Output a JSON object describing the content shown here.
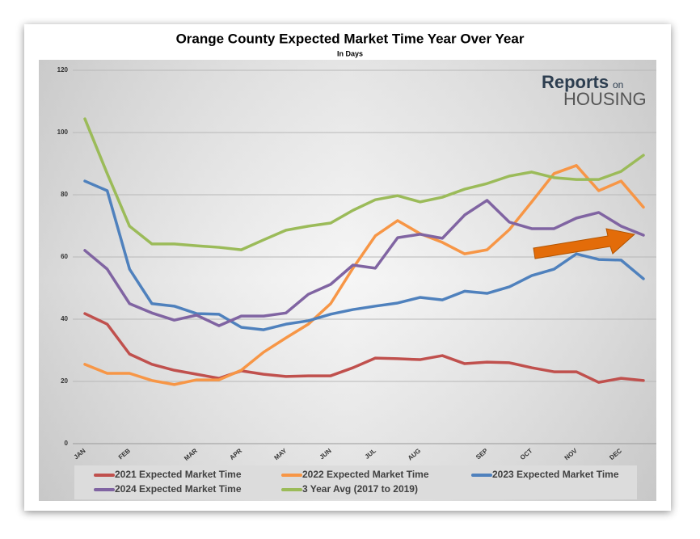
{
  "chart_data": {
    "type": "line",
    "title": "Orange County Expected Market Time Year Over Year",
    "subtitle": "In Days",
    "logo": {
      "top": "Reports",
      "small": "on",
      "bottom": "HOUSING"
    },
    "categories": [
      "JAN",
      null,
      "FEB",
      null,
      null,
      "MAR",
      null,
      "APR",
      null,
      "MAY",
      null,
      "JUN",
      null,
      "JUL",
      null,
      "AUG",
      null,
      null,
      "SEP",
      null,
      "OCT",
      null,
      "NOV",
      null,
      "DEC",
      null
    ],
    "series": [
      {
        "name": "2021 Expected Market Time",
        "color": "#c0504d",
        "values": [
          41.8,
          38.4,
          28.8,
          25.5,
          23.6,
          22.3,
          21,
          23.4,
          22.3,
          21.6,
          21.8,
          21.8,
          24.4,
          27.5,
          27.3,
          27,
          28.3,
          25.7,
          26.2,
          26,
          24.4,
          23.1,
          23.1,
          19.7,
          21,
          20.3
        ]
      },
      {
        "name": "2022 Expected Market Time",
        "color": "#f79646",
        "values": [
          25.5,
          22.6,
          22.6,
          20.3,
          19,
          20.5,
          20.5,
          23.6,
          29.4,
          34,
          38.4,
          45,
          56.4,
          66.8,
          71.7,
          67.5,
          64.7,
          61,
          62.3,
          68.8,
          77.7,
          86.8,
          89.4,
          81.3,
          84.4,
          76
        ]
      },
      {
        "name": "2023 Expected Market Time",
        "color": "#4f81bd",
        "values": [
          84.4,
          81.3,
          56.1,
          45,
          44.2,
          41.8,
          41.6,
          37.4,
          36.6,
          38.4,
          39.5,
          41.6,
          43.1,
          44.2,
          45.2,
          47,
          46.2,
          49,
          48.3,
          50.4,
          54,
          56.1,
          61,
          59.2,
          59,
          53
        ]
      },
      {
        "name": "2024 Expected Market Time",
        "color": "#8064a2",
        "values": [
          62.1,
          56.1,
          45,
          42,
          39.7,
          41.3,
          37.9,
          41,
          41,
          42,
          48,
          51.2,
          57.4,
          56.4,
          66.2,
          67.3,
          66,
          73.5,
          78.2,
          71.2,
          69.1,
          69.1,
          72.5,
          74.3,
          69.9,
          67
        ]
      },
      {
        "name": "3 Year Avg (2017 to 2019)",
        "color": "#9bbb59",
        "values": [
          104.4,
          86.8,
          69.9,
          64.2,
          64.2,
          63.6,
          63.1,
          62.3,
          65.5,
          68.6,
          69.9,
          70.9,
          75,
          78.4,
          79.7,
          77.7,
          79.2,
          81.8,
          83.6,
          86,
          87.3,
          85.5,
          84.9,
          84.9,
          87.5,
          92.7
        ]
      }
    ],
    "ylim": [
      0,
      120
    ],
    "yticks": [
      0,
      20,
      40,
      60,
      80,
      100,
      120
    ],
    "grid": true,
    "legend": "bottom"
  }
}
